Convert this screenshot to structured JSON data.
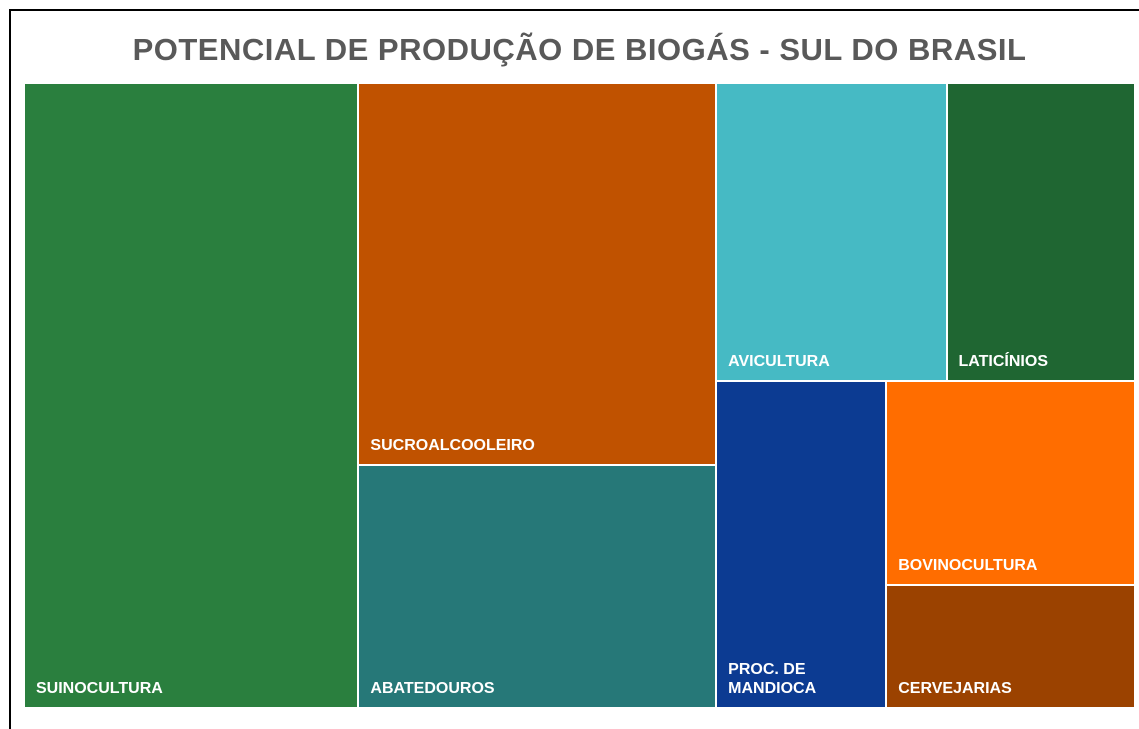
{
  "chart_data": {
    "type": "treemap",
    "title": "POTENCIAL DE PRODUÇÃO DE BIOGÁS - SUL DO BRASIL",
    "categories": [
      "SUINOCULTURA",
      "SUCROALCOOLEIRO",
      "ABATEDOUROS",
      "AVICULTURA",
      "LATICÍNIOS",
      "PROC. DE MANDIOCA",
      "BOVINOCULTURA",
      "CERVEJARIAS"
    ],
    "values": [
      30.1,
      19.7,
      12.5,
      9.9,
      8.1,
      8.0,
      7.3,
      4.4
    ],
    "colors": [
      "#2a7f3e",
      "#c05200",
      "#267878",
      "#46bac4",
      "#1f6632",
      "#0c3b92",
      "#ff6d00",
      "#9b4200"
    ]
  }
}
